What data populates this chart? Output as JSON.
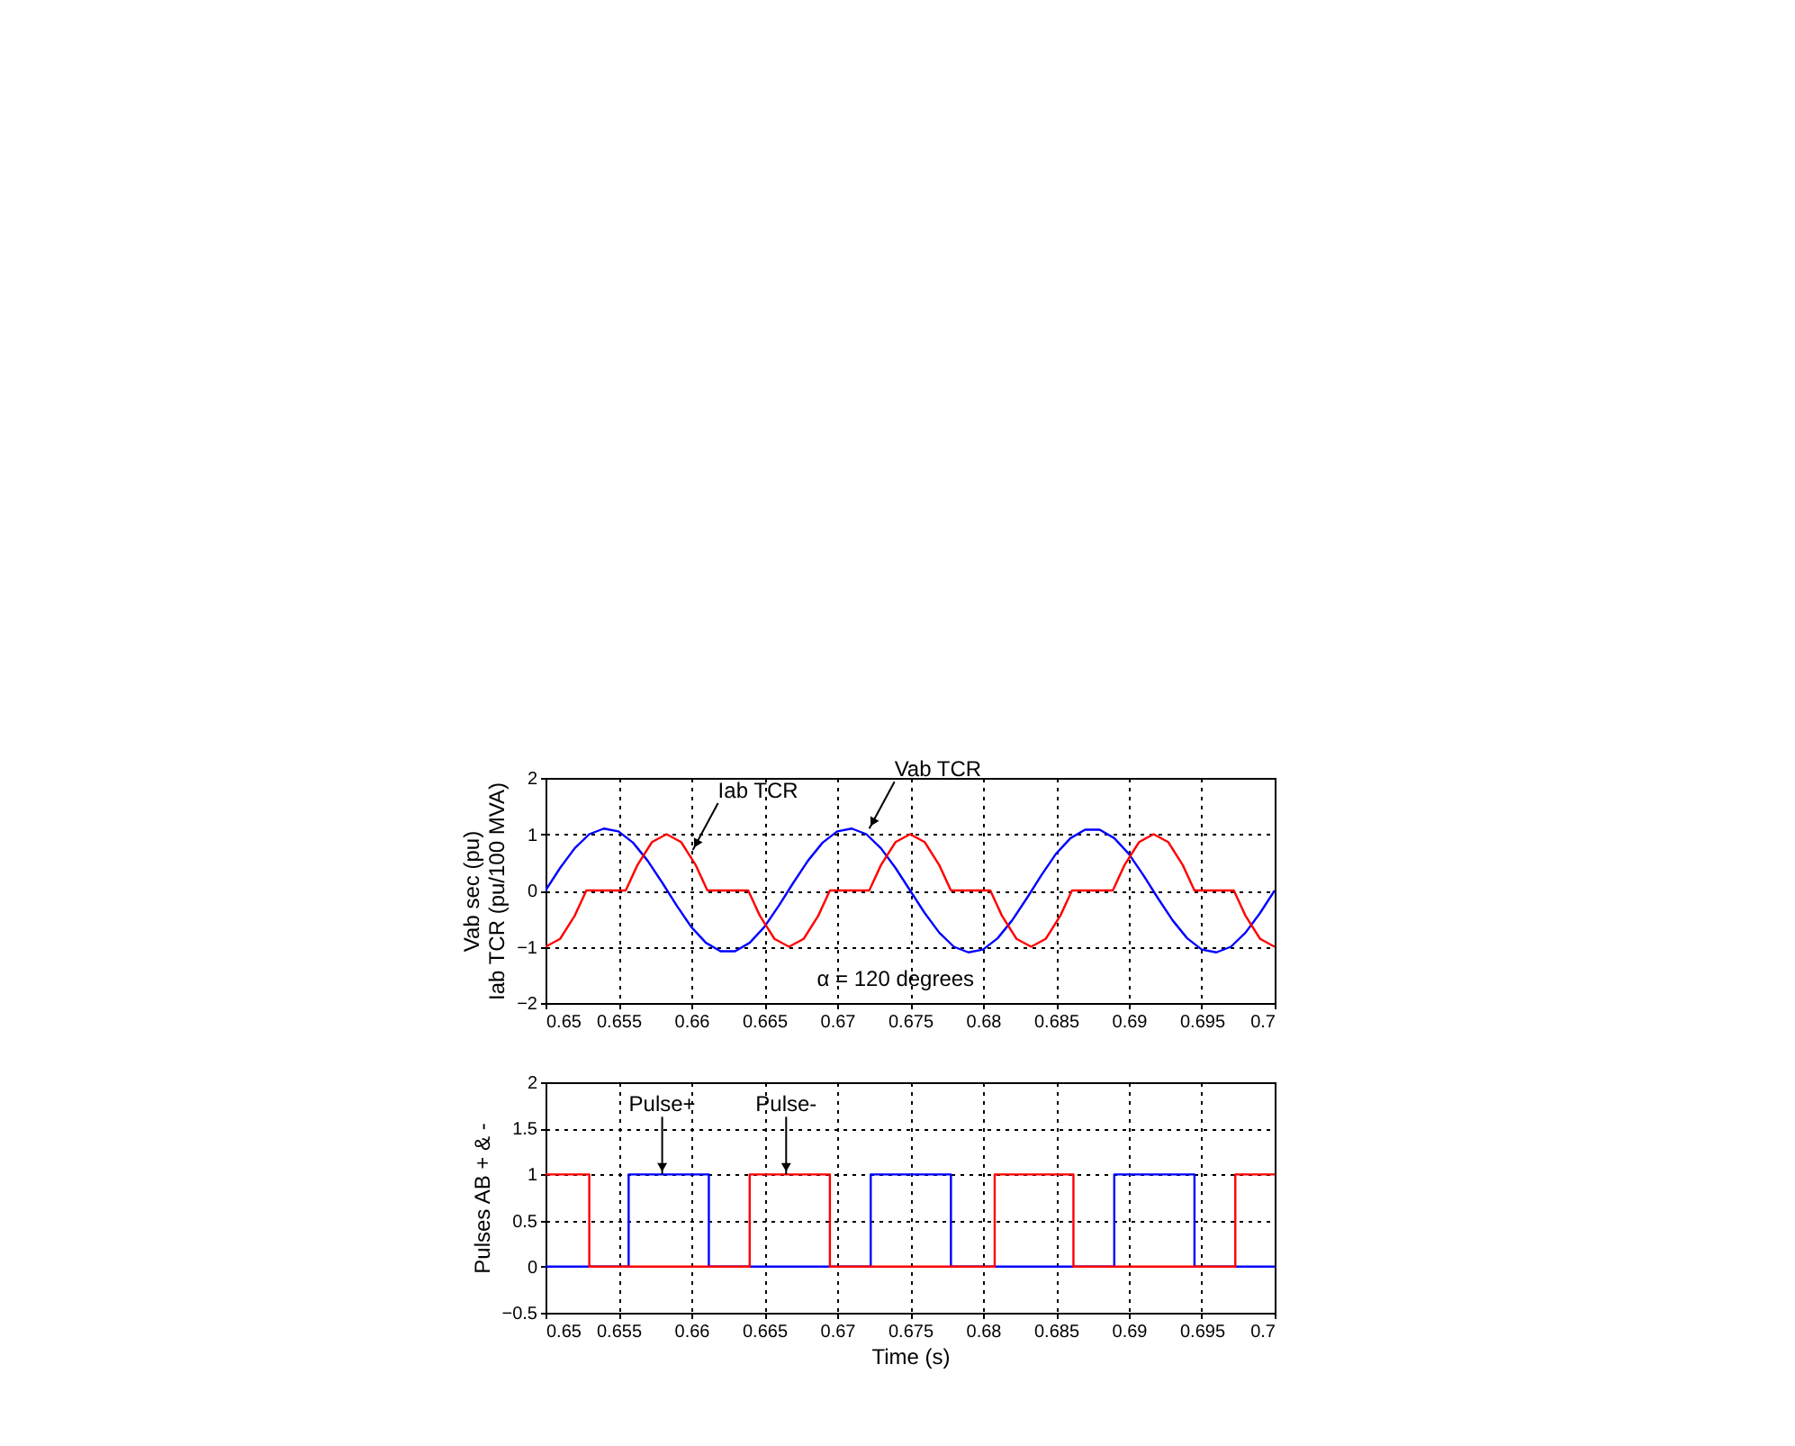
{
  "chart_data": [
    {
      "type": "line",
      "ylabel": "Vab sec (pu)\nIab TCR (pu/100 MVA)",
      "xlim": [
        0.65,
        0.7
      ],
      "ylim": [
        -2,
        2
      ],
      "xticks": [
        0.65,
        0.655,
        0.66,
        0.665,
        0.67,
        0.675,
        0.68,
        0.685,
        0.69,
        0.695,
        0.7
      ],
      "yticks": [
        -2,
        -1,
        0,
        1,
        2
      ],
      "grid": true,
      "marker": "none",
      "line_style": "solid",
      "series": [
        {
          "color": "#0000ff",
          "x": [
            0.65,
            0.651,
            0.652,
            0.653,
            0.654,
            0.655,
            0.656,
            0.657,
            0.658,
            0.659,
            0.66,
            0.661,
            0.662,
            0.663,
            0.664,
            0.665,
            0.666,
            0.667,
            0.668,
            0.669,
            0.67,
            0.671,
            0.672,
            0.673,
            0.674,
            0.675,
            0.676,
            0.677,
            0.678,
            0.679,
            0.68,
            0.681,
            0.682,
            0.683,
            0.684,
            0.685,
            0.686,
            0.687,
            0.688,
            0.689,
            0.69,
            0.691,
            0.692,
            0.693,
            0.694,
            0.695,
            0.696,
            0.697,
            0.698,
            0.699,
            0.7
          ],
          "values": [
            0,
            0.4,
            0.75,
            1.0,
            1.1,
            1.05,
            0.85,
            0.53,
            0.14,
            -0.27,
            -0.65,
            -0.93,
            -1.08,
            -1.08,
            -0.93,
            -0.65,
            -0.27,
            0.14,
            0.53,
            0.85,
            1.05,
            1.1,
            1.0,
            0.75,
            0.4,
            0,
            -0.4,
            -0.75,
            -1.0,
            -1.1,
            -1.05,
            -0.85,
            -0.53,
            -0.14,
            0.27,
            0.65,
            0.93,
            1.08,
            1.08,
            0.93,
            0.65,
            0.27,
            -0.14,
            -0.53,
            -0.85,
            -1.05,
            -1.1,
            -1.0,
            -0.75,
            -0.4,
            0
          ]
        },
        {
          "color": "#ff0000",
          "x": [
            0.65,
            0.651,
            0.652,
            0.6528,
            0.6555,
            0.6563,
            0.6573,
            0.6583,
            0.6593,
            0.6603,
            0.6611,
            0.6639,
            0.6647,
            0.6657,
            0.6667,
            0.6677,
            0.6687,
            0.6695,
            0.6722,
            0.673,
            0.674,
            0.675,
            0.676,
            0.677,
            0.6778,
            0.6805,
            0.6813,
            0.6823,
            0.6833,
            0.6843,
            0.6853,
            0.6861,
            0.6889,
            0.6897,
            0.6907,
            0.6917,
            0.6927,
            0.6937,
            0.6945,
            0.6972,
            0.698,
            0.699,
            0.7
          ],
          "values": [
            -1,
            -0.86,
            -0.45,
            0,
            0,
            0.45,
            0.86,
            1,
            0.86,
            0.45,
            0,
            0,
            -0.45,
            -0.86,
            -1,
            -0.86,
            -0.45,
            0,
            0,
            0.45,
            0.86,
            1,
            0.86,
            0.45,
            0,
            0,
            -0.45,
            -0.86,
            -1,
            -0.86,
            -0.45,
            0,
            0,
            0.45,
            0.86,
            1,
            0.86,
            0.45,
            0,
            0,
            -0.45,
            -0.86,
            -1
          ]
        }
      ],
      "annotations": [
        {
          "text": "Iab TCR",
          "x": 0.6601,
          "y": 0.72
        },
        {
          "text": "Vab TCR",
          "x": 0.6722,
          "y": 1.1
        },
        "α = 120 degrees"
      ]
    },
    {
      "type": "step",
      "xlabel": "Time (s)",
      "ylabel": "Pulses AB + & -",
      "xlim": [
        0.65,
        0.7
      ],
      "ylim": [
        -0.5,
        2
      ],
      "xticks": [
        0.65,
        0.655,
        0.66,
        0.665,
        0.67,
        0.675,
        0.68,
        0.685,
        0.69,
        0.695,
        0.7
      ],
      "yticks": [
        -0.5,
        0,
        0.5,
        1,
        1.5,
        2
      ],
      "grid": true,
      "marker": "none",
      "line_style": "solid",
      "series": [
        {
          "color": "#0000ff",
          "x": [
            0.65,
            0.6557,
            0.6612,
            0.6723,
            0.6778,
            0.689,
            0.6945,
            0.7
          ],
          "values": [
            0,
            1,
            0,
            1,
            0,
            1,
            0,
            0
          ]
        },
        {
          "color": "#ff0000",
          "x": [
            0.65,
            0.653,
            0.664,
            0.6695,
            0.6808,
            0.6862,
            0.6973,
            0.7
          ],
          "values": [
            1,
            0,
            1,
            0,
            1,
            0,
            1,
            1
          ]
        }
      ],
      "annotations": [
        {
          "text": "Pulse+",
          "x": 0.658,
          "y": 1
        },
        {
          "text": "Pulse-",
          "x": 0.6665,
          "y": 1
        }
      ]
    }
  ]
}
